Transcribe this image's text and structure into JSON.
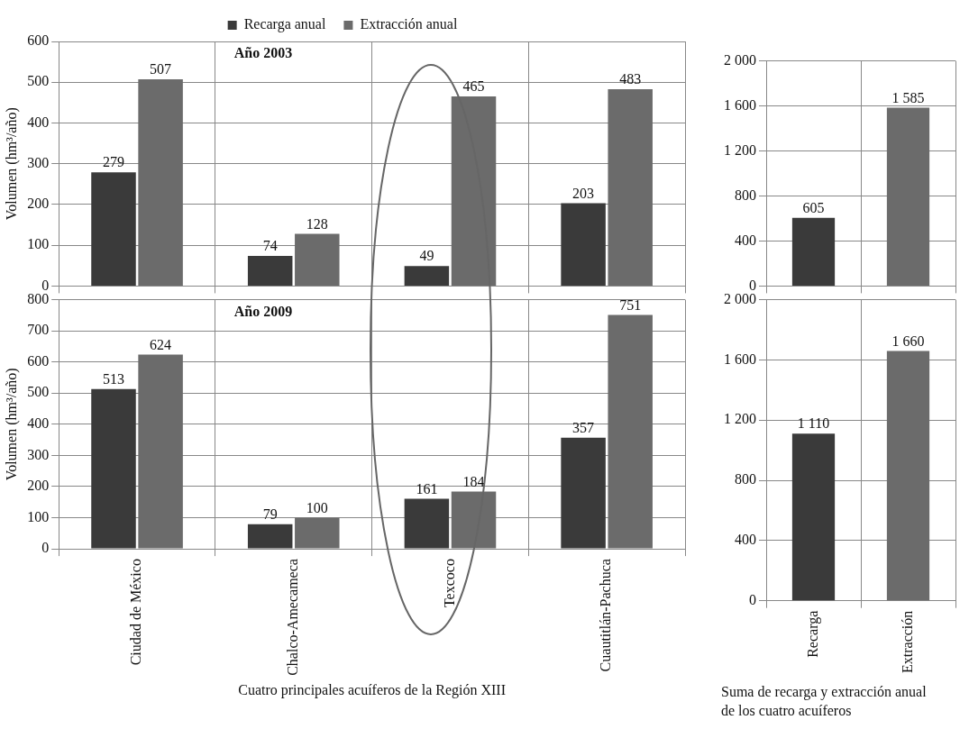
{
  "chart_data": [
    {
      "type": "bar",
      "ylabel": "Volumen (hm³/año)",
      "categories": [
        null,
        null,
        null,
        null
      ],
      "series": [
        {
          "name": "Recarga anual",
          "color": "#3a3a3a",
          "values": [
            279,
            74,
            49,
            203
          ]
        },
        {
          "name": "Extracción anual",
          "color": "#6b6b6b",
          "values": [
            507,
            128,
            465,
            483
          ]
        }
      ],
      "ylim": [
        0,
        600
      ],
      "yticks": [
        0,
        100,
        200,
        300,
        400,
        500,
        600
      ],
      "grid": true,
      "legend": "top",
      "data_labels": true,
      "tick_labels": "y",
      "annotations": [
        "Año 2003"
      ]
    },
    {
      "type": "bar",
      "categories": [
        null,
        null
      ],
      "values": [
        605,
        1585
      ],
      "colors": [
        "#3a3a3a",
        "#6b6b6b"
      ],
      "value_labels": [
        "605",
        "1 585"
      ],
      "ylim": [
        0,
        2000
      ],
      "yticks": [
        0,
        400,
        800,
        {
          "value": 1200,
          "label": "1 200"
        },
        {
          "value": 1600,
          "label": "1 600"
        },
        {
          "value": 2000,
          "label": "2 000"
        }
      ],
      "grid": true,
      "tick_labels": "y"
    },
    {
      "type": "bar",
      "ylabel": "Volumen (hm³/año)",
      "xlabel": "Cuatro principales acuíferos de la Región XIII",
      "categories": [
        "Ciudad de México",
        "Chalco-Amecameca",
        "Texcoco",
        "Cuautitlán-Pachuca"
      ],
      "series": [
        {
          "color": "#3a3a3a",
          "values": [
            513,
            79,
            161,
            357
          ]
        },
        {
          "color": "#6b6b6b",
          "values": [
            624,
            100,
            184,
            751
          ]
        }
      ],
      "ylim": [
        0,
        800
      ],
      "yticks": [
        0,
        100,
        200,
        300,
        400,
        500,
        600,
        700,
        800
      ],
      "grid": true,
      "data_labels": true,
      "annotations": [
        "Año 2009"
      ]
    },
    {
      "type": "bar",
      "xlabel": "Suma de recarga y extracción anual de los cuatro acuíferos",
      "categories": [
        "Recarga",
        "Extracción"
      ],
      "values": [
        1110,
        1660
      ],
      "colors": [
        "#3a3a3a",
        "#6b6b6b"
      ],
      "value_labels": [
        "1 110",
        "1 660"
      ],
      "ylim": [
        0,
        2000
      ],
      "yticks": [
        0,
        400,
        800,
        {
          "value": 1200,
          "label": "1 200"
        },
        {
          "value": 1600,
          "label": "1 600"
        },
        {
          "value": 2000,
          "label": "2 000"
        }
      ],
      "grid": true
    }
  ]
}
